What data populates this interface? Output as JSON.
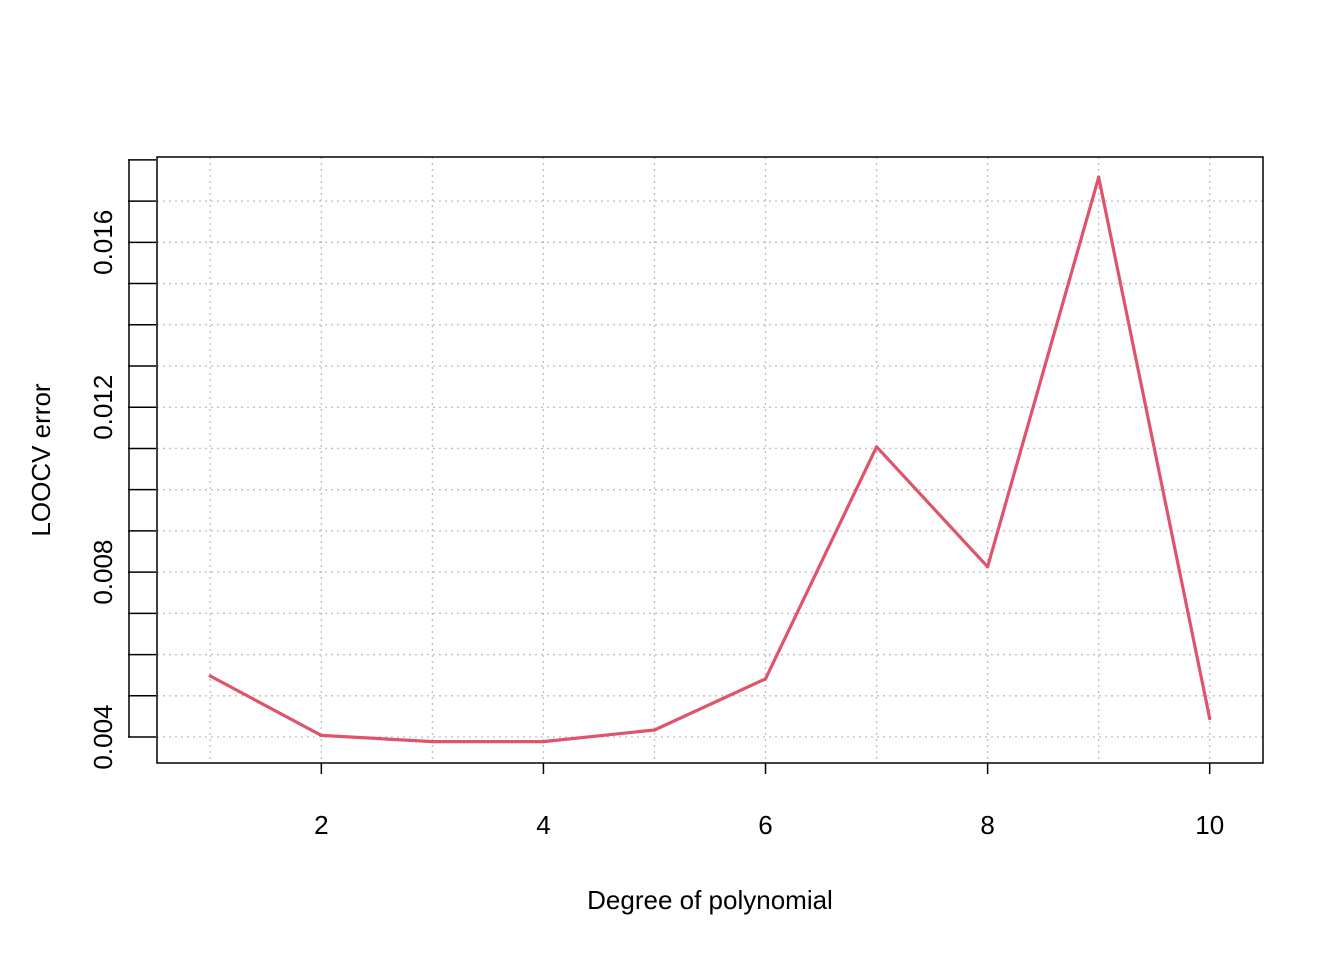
{
  "chart_data": {
    "type": "line",
    "title": "",
    "xlabel": "Degree of polynomial",
    "ylabel": "LOOCV error",
    "xlim": [
      0.52,
      10.48
    ],
    "ylim": [
      0.00337,
      0.01807
    ],
    "x_ticks": [
      2,
      4,
      6,
      8,
      10
    ],
    "y_ticks": [
      0.004,
      0.008,
      0.012,
      0.016
    ],
    "y_minor_ticks": [
      0.004,
      0.005,
      0.006,
      0.007,
      0.008,
      0.009,
      0.01,
      0.011,
      0.012,
      0.013,
      0.014,
      0.015,
      0.016,
      0.017,
      0.018
    ],
    "x_grid": [
      1,
      2,
      3,
      4,
      5,
      6,
      7,
      8,
      9,
      10
    ],
    "y_grid": [
      0.004,
      0.005,
      0.006,
      0.007,
      0.008,
      0.009,
      0.01,
      0.011,
      0.012,
      0.013,
      0.014,
      0.015,
      0.016,
      0.017
    ],
    "grid": true,
    "legend": "none",
    "series": [
      {
        "color": "#DF536B",
        "x": [
          1,
          2,
          3,
          4,
          5,
          6,
          7,
          8,
          9,
          10
        ],
        "values": [
          0.00548,
          0.00404,
          0.00389,
          0.00389,
          0.00417,
          0.00541,
          0.01104,
          0.00813,
          0.01758,
          0.00445
        ]
      }
    ]
  },
  "colors": {
    "line": "#DF536B",
    "grid": "#BEBEBE",
    "axis": "#000000",
    "background": "#FFFFFF"
  }
}
